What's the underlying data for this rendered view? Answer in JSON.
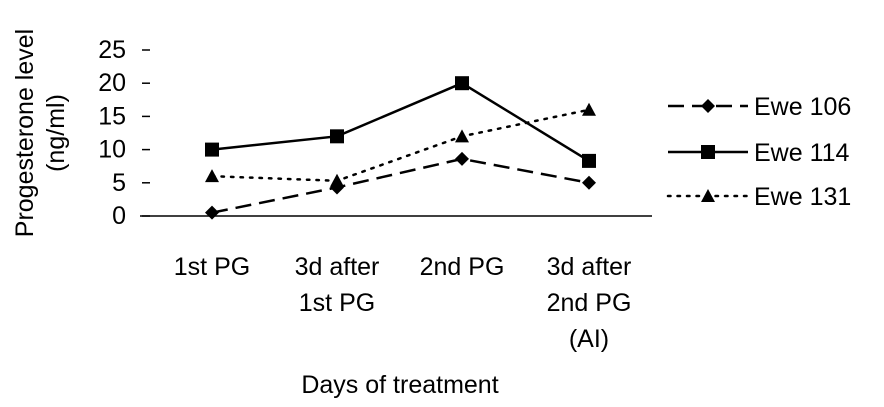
{
  "chart_data": {
    "type": "line",
    "title": "",
    "xlabel": "Days of treatment",
    "ylabel_lines": [
      "Progesterone level",
      "(ng/ml)"
    ],
    "categories": [
      [
        "1st PG"
      ],
      [
        "3d after",
        "1st PG"
      ],
      [
        "2nd PG"
      ],
      [
        "3d after",
        "2nd PG",
        "(AI)"
      ]
    ],
    "ylim": [
      0,
      25
    ],
    "yticks": [
      "0",
      "5",
      "10",
      "15",
      "20",
      "25"
    ],
    "grid": false,
    "legend_position": "right",
    "series": [
      {
        "name": "Ewe 106",
        "values": [
          0.5,
          4.3,
          8.6,
          5.0
        ],
        "marker": "diamond",
        "line": "dashed"
      },
      {
        "name": "Ewe 114",
        "values": [
          10.0,
          12.0,
          20.0,
          8.3
        ],
        "marker": "square",
        "line": "solid"
      },
      {
        "name": "Ewe 131",
        "values": [
          6.0,
          5.3,
          12.0,
          16.0
        ],
        "marker": "triangle",
        "line": "dotted"
      }
    ],
    "colors": {
      "line": "#000000",
      "axis": "#000000",
      "background": "#ffffff"
    }
  }
}
